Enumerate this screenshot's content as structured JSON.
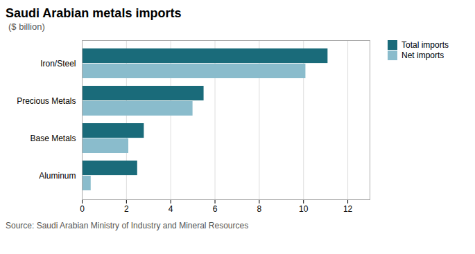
{
  "chart_data": {
    "type": "bar",
    "orientation": "horizontal",
    "title": "Saudi Arabian metals imports",
    "subtitle": "($ billion)",
    "source": "Source: Saudi Arabian Ministry of Industry and Mineral Resources",
    "categories": [
      "Aluminum",
      "Base Metals",
      "Precious Metals",
      "Iron/Steel"
    ],
    "series": [
      {
        "name": "Total imports",
        "color": "#1a6b7a",
        "values": [
          2.5,
          2.8,
          5.5,
          11.1
        ]
      },
      {
        "name": "Net imports",
        "color": "#8abccc",
        "values": [
          0.4,
          2.1,
          5.0,
          10.1
        ]
      }
    ],
    "xlim": [
      0,
      13
    ],
    "xticks": [
      0,
      2,
      4,
      6,
      8,
      10,
      12
    ],
    "grid": true,
    "legend": "right"
  }
}
